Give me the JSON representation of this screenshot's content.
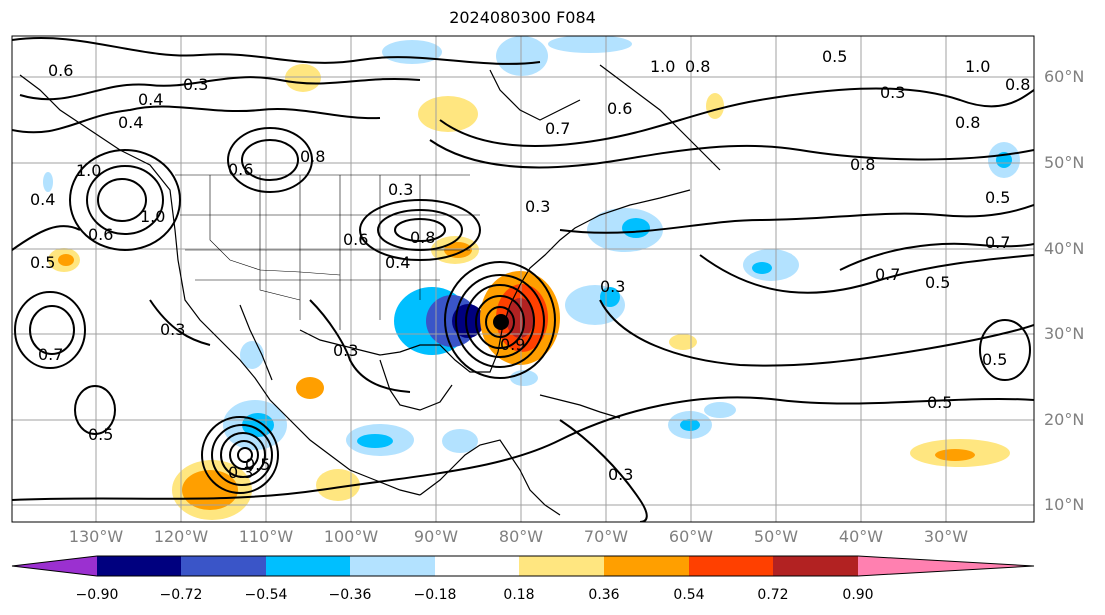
{
  "title": "2024080300 F084",
  "lat_labels": [
    "60°N",
    "50°N",
    "40°N",
    "30°N",
    "20°N",
    "10°N"
  ],
  "lon_labels": [
    "130°W",
    "120°W",
    "110°W",
    "100°W",
    "90°W",
    "80°W",
    "70°W",
    "60°W",
    "50°W",
    "40°W",
    "30°W"
  ],
  "colorbar": {
    "ticks": [
      "−0.90",
      "−0.72",
      "−0.54",
      "−0.36",
      "−0.18",
      "0.18",
      "0.36",
      "0.54",
      "0.72",
      "0.90"
    ],
    "colors": [
      "#9b30d0",
      "#00007f",
      "#3a55c8",
      "#00bfff",
      "#b3e2ff",
      "#ffffff",
      "#ffe680",
      "#ff9f00",
      "#ff4000",
      "#b22222",
      "#ff80b0"
    ]
  },
  "contour_labels": [
    "0.6",
    "0.3",
    "0.4",
    "0.4",
    "1.0",
    "1.0",
    "0.6",
    "0.4",
    "0.5",
    "0.6",
    "0.7",
    "0.5",
    "0.3",
    "0.3",
    "0.8",
    "0.3",
    "0.6",
    "0.8",
    "0.4",
    "0.3",
    "0.3",
    "0.6",
    "0.7",
    "1.0",
    "0.8",
    "0.5",
    "0.3",
    "0.8",
    "0.8",
    "0.5",
    "0.7",
    "0.7",
    "0.5",
    "0.5",
    "0.3",
    "0.3",
    "0.5",
    "1.0",
    "0.8",
    "0.5",
    "0.9"
  ]
}
